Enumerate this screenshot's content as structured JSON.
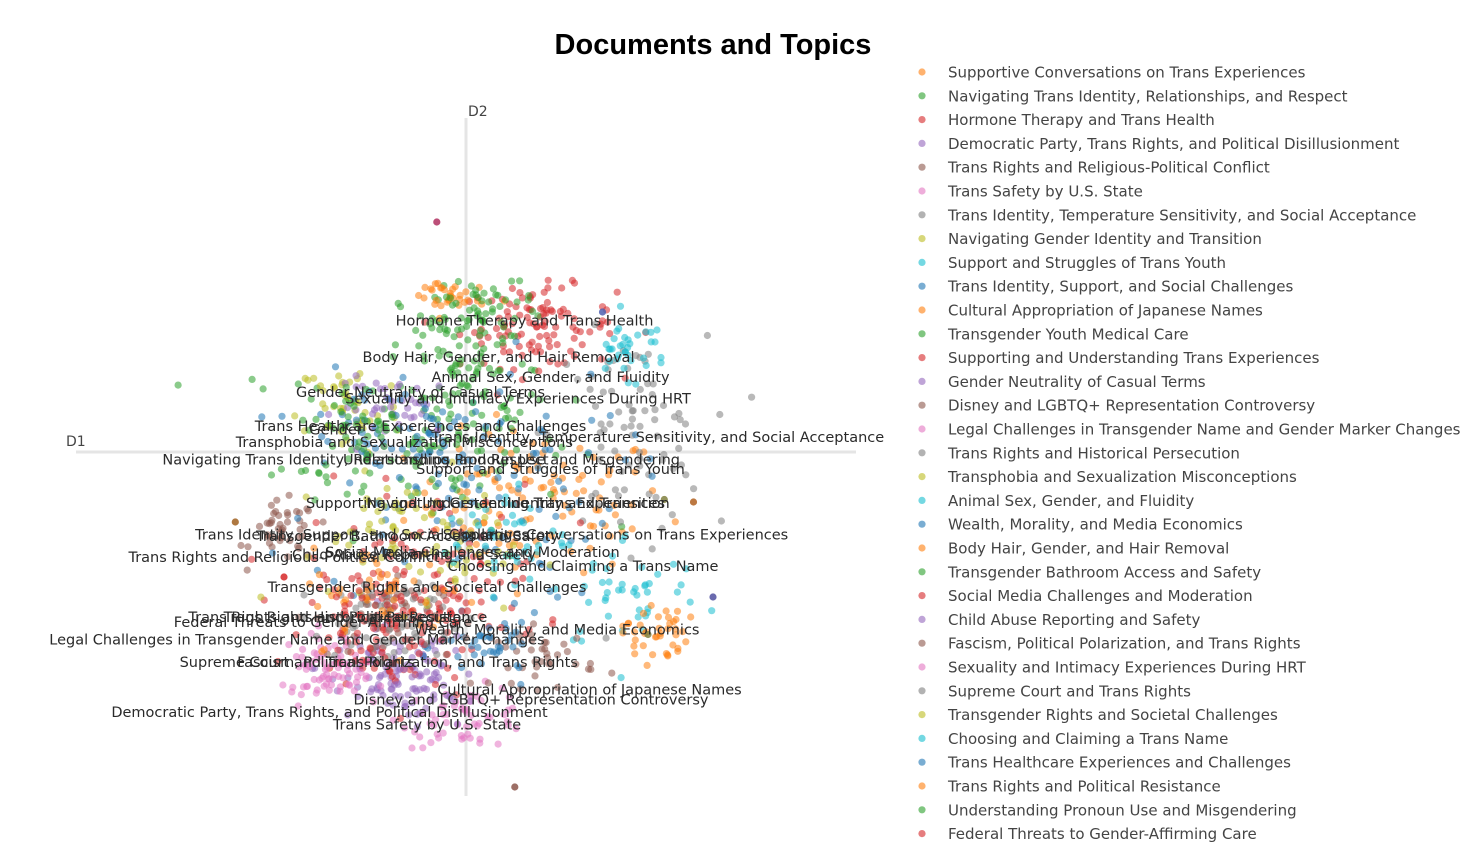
{
  "chart_data": {
    "type": "scatter",
    "title": "Documents and Topics",
    "xlabel": "D1",
    "ylabel": "D2",
    "xlim": [
      -6,
      6
    ],
    "ylim": [
      -7,
      7
    ],
    "grid": false,
    "legend_position": "right",
    "series": [
      {
        "name": "Supportive Conversations on Trans Experiences",
        "color": "#ff7f0e",
        "center": [
          1.1,
          -1.0
        ],
        "spread": [
          1.0,
          0.7
        ],
        "count": 110
      },
      {
        "name": "Navigating Trans Identity, Relationships, and Respect",
        "color": "#2ca02c",
        "center": [
          -0.6,
          0.3
        ],
        "spread": [
          1.1,
          0.9
        ],
        "count": 110
      },
      {
        "name": "Hormone Therapy and Trans Health",
        "color": "#d62728",
        "center": [
          1.1,
          2.5
        ],
        "spread": [
          0.6,
          0.4
        ],
        "count": 110
      },
      {
        "name": "Democratic Party, Trans Rights, and Political Disillusionment",
        "color": "#9467bd",
        "center": [
          -1.1,
          -4.3
        ],
        "spread": [
          0.6,
          0.4
        ],
        "count": 80
      },
      {
        "name": "Trans Rights and Religious-Political Conflict",
        "color": "#8c564b",
        "center": [
          -2.8,
          -1.6
        ],
        "spread": [
          0.25,
          0.3
        ],
        "count": 45
      },
      {
        "name": "Trans Safety by U.S. State",
        "color": "#e377c2",
        "center": [
          0.0,
          -5.3
        ],
        "spread": [
          0.5,
          0.3
        ],
        "count": 60
      },
      {
        "name": "Trans Identity, Temperature Sensitivity, and Social Acceptance",
        "color": "#7f7f7f",
        "center": [
          2.5,
          0.3
        ],
        "spread": [
          0.6,
          1.0
        ],
        "count": 80
      },
      {
        "name": "Navigating Gender Identity and Transition",
        "color": "#bcbd22",
        "center": [
          -1.8,
          0.9
        ],
        "spread": [
          0.4,
          0.5
        ],
        "count": 45
      },
      {
        "name": "Support and Struggles of Trans Youth",
        "color": "#17becf",
        "center": [
          2.5,
          -2.8
        ],
        "spread": [
          0.6,
          0.6
        ],
        "count": 45
      },
      {
        "name": "Trans Identity, Support, and Social Challenges",
        "color": "#1f77b4",
        "center": [
          0.0,
          -0.6
        ],
        "spread": [
          1.2,
          1.2
        ],
        "count": 110
      },
      {
        "name": "Cultural Appropriation of Japanese Names",
        "color": "#ff7f0e",
        "center": [
          2.9,
          -3.6
        ],
        "spread": [
          0.25,
          0.3
        ],
        "count": 40
      },
      {
        "name": "Transgender Youth Medical Care",
        "color": "#2ca02c",
        "center": [
          0.0,
          1.8
        ],
        "spread": [
          0.5,
          0.8
        ],
        "count": 80
      },
      {
        "name": "Supporting and Understanding Trans Experiences",
        "color": "#d62728",
        "center": [
          -0.6,
          -2.5
        ],
        "spread": [
          0.9,
          0.9
        ],
        "count": 110
      },
      {
        "name": "Gender Neutrality of Casual Terms",
        "color": "#9467bd",
        "center": [
          -1.0,
          0.9
        ],
        "spread": [
          0.5,
          0.3
        ],
        "count": 40
      },
      {
        "name": "Disney and LGBTQ+ Representation Controversy",
        "color": "#8c564b",
        "center": [
          1.2,
          -4.1
        ],
        "spread": [
          0.4,
          0.3
        ],
        "count": 40
      },
      {
        "name": "Legal Challenges in Transgender Name and Gender Marker Changes",
        "color": "#e377c2",
        "center": [
          -2.2,
          -4.2
        ],
        "spread": [
          0.3,
          0.3
        ],
        "count": 40
      },
      {
        "name": "Trans Rights and Historical Persecution",
        "color": "#7f7f7f",
        "center": [
          -1.3,
          -3.2
        ],
        "spread": [
          0.5,
          0.4
        ],
        "count": 40
      },
      {
        "name": "Transphobia and Sexualization Misconceptions",
        "color": "#bcbd22",
        "center": [
          -0.9,
          -1.5
        ],
        "spread": [
          0.6,
          0.5
        ],
        "count": 40
      },
      {
        "name": "Animal Sex, Gender, and Fluidity",
        "color": "#17becf",
        "center": [
          2.5,
          2.1
        ],
        "spread": [
          0.3,
          0.3
        ],
        "count": 35
      },
      {
        "name": "Wealth, Morality, and Media Economics",
        "color": "#1f77b4",
        "center": [
          0.4,
          -3.9
        ],
        "spread": [
          0.4,
          0.3
        ],
        "count": 40
      },
      {
        "name": "Body Hair, Gender, and Hair Removal",
        "color": "#ff7f0e",
        "center": [
          -0.3,
          3.1
        ],
        "spread": [
          0.3,
          0.2
        ],
        "count": 35
      },
      {
        "name": "Transgender Bathroom Access and Safety",
        "color": "#2ca02c",
        "center": [
          0.2,
          2.8
        ],
        "spread": [
          0.4,
          0.4
        ],
        "count": 50
      },
      {
        "name": "Social Media Challenges and Moderation",
        "color": "#d62728",
        "center": [
          -1.3,
          -3.6
        ],
        "spread": [
          0.6,
          0.5
        ],
        "count": 60
      },
      {
        "name": "Child Abuse Reporting and Safety",
        "color": "#9467bd",
        "center": [
          -0.8,
          -4.8
        ],
        "spread": [
          0.4,
          0.3
        ],
        "count": 40
      },
      {
        "name": "Fascism, Political Polarization, and Trans Rights",
        "color": "#8c564b",
        "center": [
          -1.4,
          -3.3
        ],
        "spread": [
          0.5,
          0.4
        ],
        "count": 40
      },
      {
        "name": "Sexuality and Intimacy Experiences During HRT",
        "color": "#e377c2",
        "center": [
          -2.1,
          -4.6
        ],
        "spread": [
          0.3,
          0.2
        ],
        "count": 35
      },
      {
        "name": "Supreme Court and Trans Rights",
        "color": "#7f7f7f",
        "center": [
          -1.2,
          -3.5
        ],
        "spread": [
          0.5,
          0.4
        ],
        "count": 40
      },
      {
        "name": "Transgender Rights and Societal Challenges",
        "color": "#bcbd22",
        "center": [
          -0.5,
          -2.0
        ],
        "spread": [
          0.8,
          0.6
        ],
        "count": 45
      },
      {
        "name": "Choosing and Claiming a Trans Name",
        "color": "#17becf",
        "center": [
          0.6,
          -1.7
        ],
        "spread": [
          0.5,
          0.5
        ],
        "count": 40
      },
      {
        "name": "Trans Healthcare Experiences and Challenges",
        "color": "#1f77b4",
        "center": [
          -1.0,
          0.4
        ],
        "spread": [
          0.7,
          0.6
        ],
        "count": 50
      },
      {
        "name": "Trans Rights and Political Resistance",
        "color": "#ff7f0e",
        "center": [
          -1.2,
          -2.9
        ],
        "spread": [
          0.6,
          0.5
        ],
        "count": 45
      },
      {
        "name": "Understanding Pronoun Use and Misgendering",
        "color": "#2ca02c",
        "center": [
          -1.6,
          0.4
        ],
        "spread": [
          0.5,
          0.5
        ],
        "count": 50
      },
      {
        "name": "Federal Threats to Gender-Affirming Care",
        "color": "#d62728",
        "center": [
          -1.1,
          -3.1
        ],
        "spread": [
          0.6,
          0.5
        ],
        "count": 45
      }
    ],
    "annotations": [
      {
        "text": "Hormone Therapy and Trans Health",
        "x": 0.9,
        "y": 2.53
      },
      {
        "text": "Body Hair, Gender, and Hair Removal",
        "x": 0.5,
        "y": 1.8
      },
      {
        "text": "Animal Sex, Gender, and Fluidity",
        "x": 1.3,
        "y": 1.4
      },
      {
        "text": "Gender Neutrality of Casual Terms",
        "x": -0.7,
        "y": 1.1
      },
      {
        "text": "Sexuality and Intimacy Experiences During HRT",
        "x": 0.8,
        "y": 0.97
      },
      {
        "text": "Trans Healthcare Experiences and Challenges",
        "x": -0.7,
        "y": 0.42
      },
      {
        "text": "Gender",
        "x": -2.0,
        "y": 0.35
      },
      {
        "text": "Transphobia and Sexualization Misconceptions",
        "x": -0.95,
        "y": 0.1
      },
      {
        "text": "Trans Identity, Temperature Sensitivity, and Social Acceptance",
        "x": 2.95,
        "y": 0.2
      },
      {
        "text": "Navigating Trans Identity, Relationships, and Respect",
        "x": -1.7,
        "y": -0.25
      },
      {
        "text": "Understanding Pronoun Use and Misgendering",
        "x": 0.7,
        "y": -0.25
      },
      {
        "text": "Support and Struggles of Trans Youth",
        "x": 1.3,
        "y": -0.44
      },
      {
        "text": "Navigating Gender Identity and Transition",
        "x": 0.8,
        "y": -1.12
      },
      {
        "text": "Supporting and Understanding Trans Experiences",
        "x": 0.3,
        "y": -1.12
      },
      {
        "text": "Trans Identity, Support, and Social Challenges",
        "x": -1.6,
        "y": -1.75
      },
      {
        "text": "Transgender Bathroom Access and Safety",
        "x": -0.9,
        "y": -1.78
      },
      {
        "text": "Supportive Conversations on Trans Experiences",
        "x": 2.3,
        "y": -1.75
      },
      {
        "text": "Social Media Challenges and Moderation",
        "x": 0.1,
        "y": -2.1
      },
      {
        "text": "Child Abuse Reporting and Safety",
        "x": -0.8,
        "y": -2.15
      },
      {
        "text": "Trans Rights and Religious-Political Conflict",
        "x": -2.8,
        "y": -2.2
      },
      {
        "text": "Choosing and Claiming a Trans Name",
        "x": 1.8,
        "y": -2.38
      },
      {
        "text": "Transgender Rights and Societal Challenges",
        "x": -0.6,
        "y": -2.8
      },
      {
        "text": "Trans Rights and Historical Persecution",
        "x": -2.1,
        "y": -3.4
      },
      {
        "text": "Trans Rights and Political Resistance",
        "x": -1.7,
        "y": -3.4
      },
      {
        "text": "Federal Threats to Gender-Affirming Care",
        "x": -2.2,
        "y": -3.5
      },
      {
        "text": "Wealth, Morality, and Media Economics",
        "x": 1.4,
        "y": -3.65
      },
      {
        "text": "Legal Challenges in Transgender Name and Gender Marker Changes",
        "x": -2.6,
        "y": -3.85
      },
      {
        "text": "Supreme Court and Trans Rights",
        "x": -2.6,
        "y": -4.3
      },
      {
        "text": "Fascism, Political Polarization, and Trans Rights",
        "x": -0.9,
        "y": -4.3
      },
      {
        "text": "Cultural Appropriation of Japanese Names",
        "x": 1.9,
        "y": -4.85
      },
      {
        "text": "Disney and LGBTQ+ Representation Controversy",
        "x": 1.0,
        "y": -5.05
      },
      {
        "text": "Democratic Party, Trans Rights, and Political Disillusionment",
        "x": -2.1,
        "y": -5.3
      },
      {
        "text": "Trans Safety by U.S. State",
        "x": -0.6,
        "y": -5.55
      }
    ]
  }
}
